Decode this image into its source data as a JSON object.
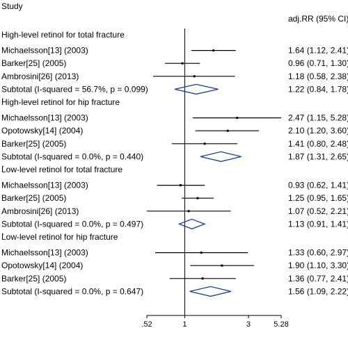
{
  "chart_data": {
    "type": "forest",
    "column_headers": {
      "study": "Study",
      "estimate": "adj.RR (95% CI)"
    },
    "x_axis": {
      "scale": "log",
      "null_line": 1,
      "range": [
        0.52,
        5.28
      ],
      "ticks": [
        ".52",
        "1",
        "3",
        "5.28"
      ],
      "tick_values": [
        0.52,
        1,
        3,
        5.28
      ]
    },
    "groups": [
      {
        "title": "High-level retinol for total fracture",
        "studies": [
          {
            "label": "Michaelsson[13] (2003)",
            "rr": 1.64,
            "lo": 1.12,
            "hi": 2.41,
            "text": "1.64 (1.12, 2.41)"
          },
          {
            "label": "Barker[25] (2005)",
            "rr": 0.96,
            "lo": 0.71,
            "hi": 1.3,
            "text": "0.96 (0.71, 1.30)"
          },
          {
            "label": "Ambrosini[26] (2013)",
            "rr": 1.18,
            "lo": 0.58,
            "hi": 2.38,
            "text": "1.18 (0.58, 2.38)"
          }
        ],
        "subtotal": {
          "label": "Subtotal  (I-squared = 56.7%, p = 0.099)",
          "rr": 1.22,
          "lo": 0.84,
          "hi": 1.78,
          "text": "1.22 (0.84, 1.78)"
        }
      },
      {
        "title": "High-level retinol for hip fracture",
        "studies": [
          {
            "label": "Michaelsson[13] (2003)",
            "rr": 2.47,
            "lo": 1.15,
            "hi": 5.28,
            "text": "2.47 (1.15, 5.28)"
          },
          {
            "label": "Opotowsky[14] (2004)",
            "rr": 2.1,
            "lo": 1.2,
            "hi": 3.6,
            "text": "2.10 (1.20, 3.60)"
          },
          {
            "label": "Barker[25] (2005)",
            "rr": 1.41,
            "lo": 0.8,
            "hi": 2.48,
            "text": "1.41 (0.80, 2.48)"
          }
        ],
        "subtotal": {
          "label": "Subtotal  (I-squared = 0.0%, p = 0.440)",
          "rr": 1.87,
          "lo": 1.31,
          "hi": 2.65,
          "text": "1.87 (1.31, 2.65)"
        }
      },
      {
        "title": "Low-level retinol for total fracture",
        "studies": [
          {
            "label": "Michaelsson[13] (2003)",
            "rr": 0.93,
            "lo": 0.62,
            "hi": 1.41,
            "text": "0.93 (0.62, 1.41)"
          },
          {
            "label": "Barker[25] (2005)",
            "rr": 1.25,
            "lo": 0.95,
            "hi": 1.65,
            "text": "1.25 (0.95, 1.65)"
          },
          {
            "label": "Ambrosini[26] (2013)",
            "rr": 1.07,
            "lo": 0.52,
            "hi": 2.21,
            "text": "1.07 (0.52, 2.21)"
          }
        ],
        "subtotal": {
          "label": "Subtotal  (I-squared = 0.0%, p = 0.497)",
          "rr": 1.13,
          "lo": 0.91,
          "hi": 1.41,
          "text": "1.13 (0.91, 1.41)"
        }
      },
      {
        "title": "Low-level retinol for hip fracture",
        "studies": [
          {
            "label": "Michaelsson[13] (2003)",
            "rr": 1.33,
            "lo": 0.6,
            "hi": 2.97,
            "text": "1.33 (0.60, 2.97)"
          },
          {
            "label": "Opotowsky[14] (2004)",
            "rr": 1.9,
            "lo": 1.1,
            "hi": 3.3,
            "text": "1.90 (1.10, 3.30)"
          },
          {
            "label": "Barker[25] (2005)",
            "rr": 1.36,
            "rr_note": "",
            "lo": 0.77,
            "hi": 2.41,
            "text": "1.36 (0.77, 2.41)"
          }
        ],
        "subtotal": {
          "label": "Subtotal  (I-squared = 0.0%, p = 0.647)",
          "rr": 1.56,
          "lo": 1.09,
          "hi": 2.22,
          "text": "1.56 (1.09, 2.22)"
        }
      }
    ],
    "colors": {
      "diamond": "#1f3a93",
      "lines": "#000000"
    }
  }
}
